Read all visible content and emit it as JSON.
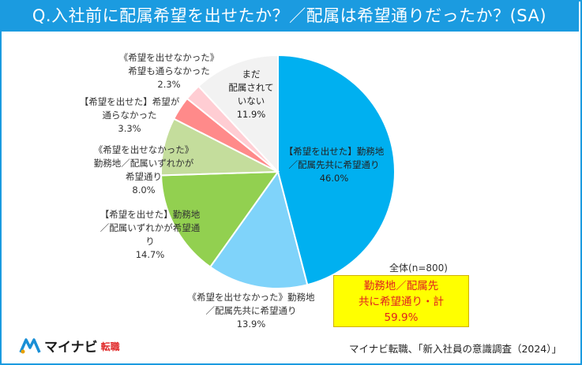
{
  "header": {
    "title": "Q.入社前に配属希望を出せたか？／配属は希望通りだったか？(SA)"
  },
  "chart_data": {
    "type": "pie",
    "title": "Q.入社前に配属希望を出せたか？／配属は希望通りだったか？(SA)",
    "slices": [
      {
        "lines": [
          "【希望を出せた】勤務地",
          "／配属先共に希望通り"
        ],
        "value": 46.0,
        "value_label": "46.0%",
        "color": "#00b0f0"
      },
      {
        "lines": [
          "《希望を出せなかった》勤務地",
          "／配属先共に希望通り"
        ],
        "value": 13.9,
        "value_label": "13.9%",
        "color": "#7fd3fa"
      },
      {
        "lines": [
          "【希望を出せた】勤務地",
          "／配属いずれかが希望通",
          "り"
        ],
        "value": 14.7,
        "value_label": "14.7%",
        "color": "#92d050"
      },
      {
        "lines": [
          "《希望を出せなかった》",
          "勤務地／配属いずれかが",
          "希望通り"
        ],
        "value": 8.0,
        "value_label": "8.0%",
        "color": "#c4dd9c"
      },
      {
        "lines": [
          "【希望を出せた】希望が",
          "通らなかった"
        ],
        "value": 3.3,
        "value_label": "3.3%",
        "color": "#ff8a8a"
      },
      {
        "lines": [
          "《希望を出せなかった》",
          "希望も通らなかった"
        ],
        "value": 2.3,
        "value_label": "2.3%",
        "color": "#ffcdd3"
      },
      {
        "lines": [
          "まだ",
          "配属されて",
          "いない"
        ],
        "value": 11.9,
        "value_label": "11.9%",
        "color": "#f2f2f2"
      }
    ],
    "base_label": "全体(n=800)",
    "highlight": {
      "lines": [
        "勤務地／配属先",
        "共に希望通り・計",
        "59.9%"
      ],
      "value": 59.9
    }
  },
  "footer": {
    "logo_text": "マイナビ",
    "logo_sub": "転職",
    "source": "マイナビ転職、「新入社員の意識調査（2024）」"
  }
}
